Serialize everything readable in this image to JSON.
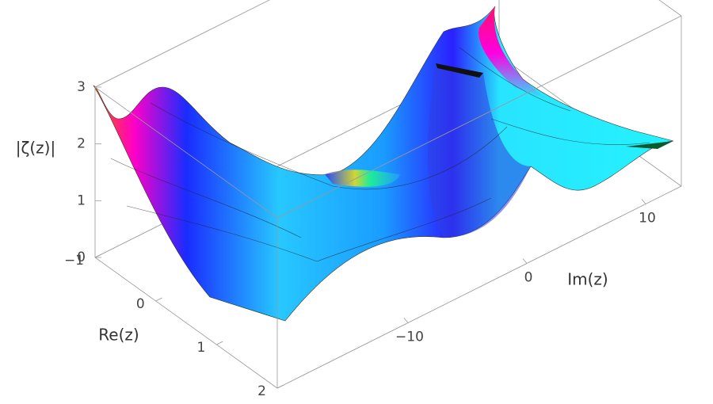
{
  "chart_data": {
    "type": "surface3d",
    "xlabel": "Re(z)",
    "ylabel": "Im(z)",
    "zlabel": "|ζ(z)|",
    "xlim": [
      -1,
      2
    ],
    "xticks": [
      {
        "value": -1,
        "label": "−1"
      },
      0,
      1,
      2
    ],
    "ylim": [
      -21,
      13
    ],
    "yticks": [
      {
        "value": -10,
        "label": "−10"
      },
      0,
      10
    ],
    "zlim": [
      0,
      3
    ],
    "zticks": [
      0,
      1,
      2,
      3
    ]
  }
}
